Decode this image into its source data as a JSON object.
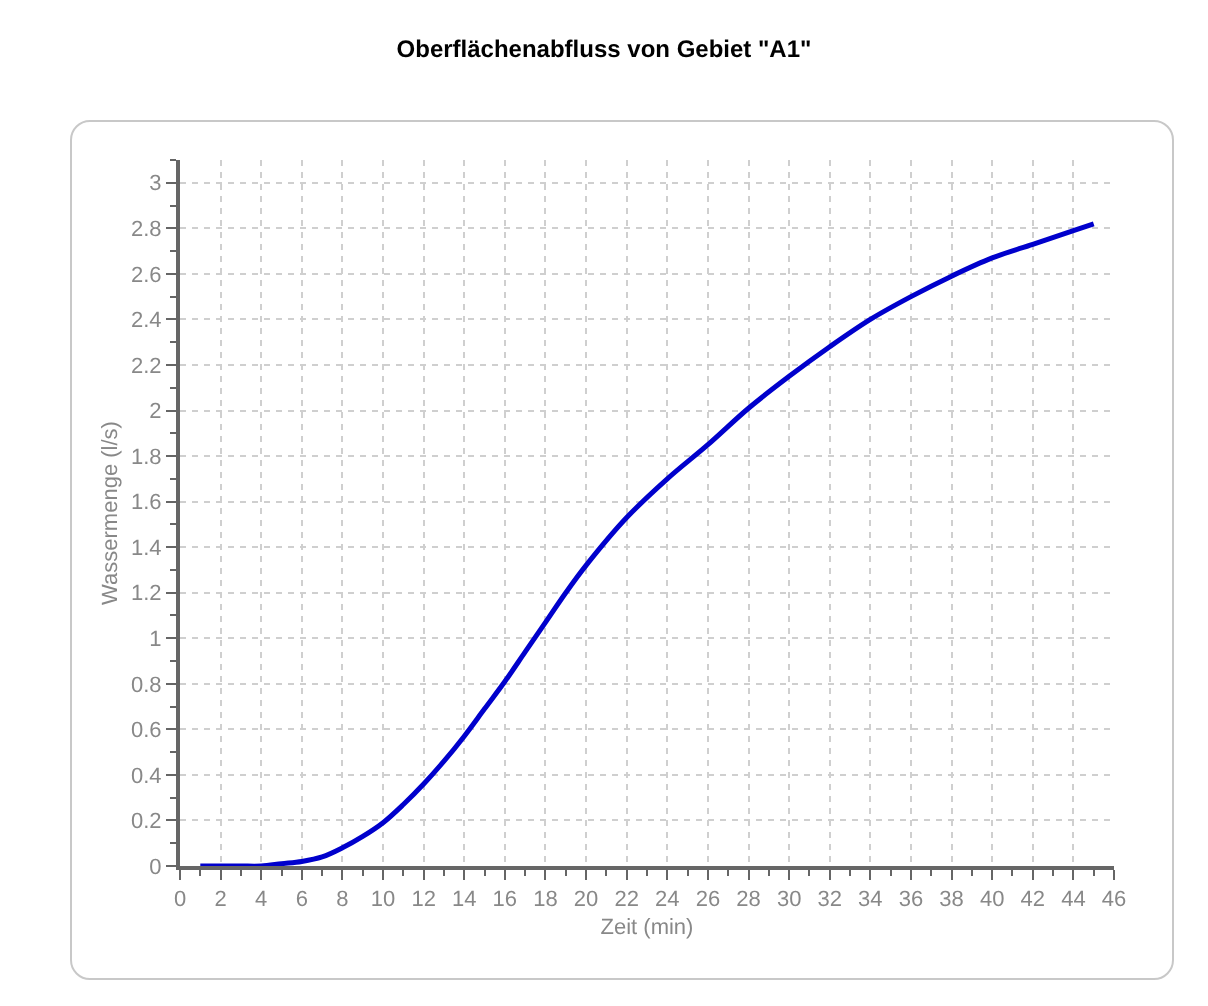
{
  "chart_data": {
    "type": "line",
    "title": "Oberflächenabfluss von Gebiet \"A1\"",
    "xlabel": "Zeit (min)",
    "ylabel": "Wassermenge (l/s)",
    "x": [
      1,
      2,
      3,
      4,
      5,
      6,
      7,
      8,
      9,
      10,
      11,
      12,
      13,
      14,
      15,
      16,
      17,
      18,
      19,
      20,
      22,
      24,
      26,
      28,
      30,
      32,
      34,
      36,
      38,
      40,
      42,
      44,
      45
    ],
    "series": [
      {
        "color": "#0000cc",
        "values": [
          0,
          0,
          0,
          0,
          0.01,
          0.02,
          0.04,
          0.08,
          0.13,
          0.19,
          0.27,
          0.36,
          0.46,
          0.57,
          0.69,
          0.81,
          0.94,
          1.07,
          1.2,
          1.32,
          1.53,
          1.7,
          1.85,
          2.01,
          2.15,
          2.28,
          2.4,
          2.5,
          2.59,
          2.67,
          2.73,
          2.79,
          2.82
        ]
      }
    ],
    "xlim": [
      0,
      46
    ],
    "ylim": [
      0,
      3.1
    ],
    "xticks": [
      0,
      2,
      4,
      6,
      8,
      10,
      12,
      14,
      16,
      18,
      20,
      22,
      24,
      26,
      28,
      30,
      32,
      34,
      36,
      38,
      40,
      42,
      44,
      46
    ],
    "yticks": [
      0,
      0.2,
      0.4,
      0.6,
      0.8,
      1,
      1.2,
      1.4,
      1.6,
      1.8,
      2,
      2.2,
      2.4,
      2.6,
      2.8,
      3
    ],
    "grid": true,
    "marker": "none",
    "line_style": "solid"
  }
}
